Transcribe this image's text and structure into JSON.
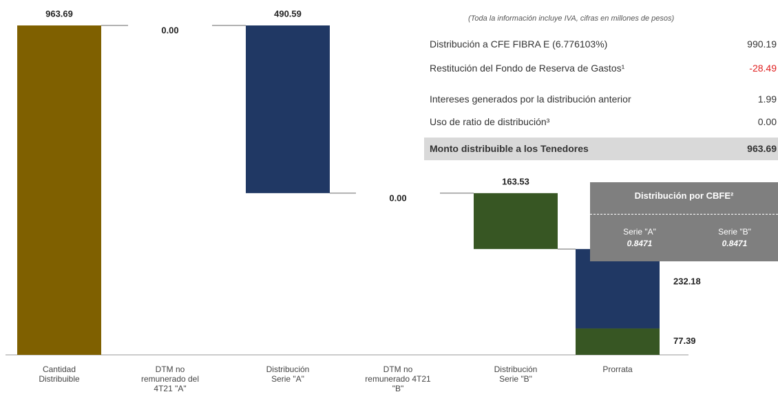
{
  "chart_data": {
    "type": "waterfall",
    "categories": [
      "Cantidad\nDistribuible",
      "DTM no\nremunerado del\n4T21 \"A\"",
      "Distribución\nSerie \"A\"",
      "DTM no\nremunerado 4T21\n\"B\"",
      "Distribución\nSerie \"B\"",
      "Prorrata"
    ],
    "values": [
      963.69,
      0,
      490.59,
      0,
      163.53,
      null
    ],
    "value_labels": [
      "963.69",
      "0.00",
      "490.59",
      "0.00",
      "163.53",
      null
    ],
    "colors": [
      "#7f6000",
      "#7f6000",
      "#203864",
      "#375623",
      "#375623",
      null
    ],
    "prorrata_segments": [
      {
        "value": 77.39,
        "label": "77.39",
        "color": "#375623"
      },
      {
        "value": 232.18,
        "label": "232.18",
        "color": "#203864"
      }
    ]
  },
  "note": "(Toda la información incluye IVA, cifras en millones de pesos)",
  "table": {
    "rows": [
      [
        "Distribución a CFE FIBRA E (6.776103%)",
        "990.19"
      ],
      [
        "Restitución del Fondo de Reserva de Gastos¹",
        "-28.49"
      ],
      [
        "Intereses generados por la distribución anterior",
        "1.99"
      ],
      [
        "Uso de ratio de distribución³",
        "0.00"
      ]
    ],
    "total": [
      "Monto distribuible a los Tenedores",
      "963.69"
    ]
  },
  "box": {
    "title": "Distribución por CBFE²",
    "columns": [
      [
        "Serie \"A\"",
        "0.8471"
      ],
      [
        "Serie \"B\"",
        "0.8471"
      ]
    ]
  }
}
